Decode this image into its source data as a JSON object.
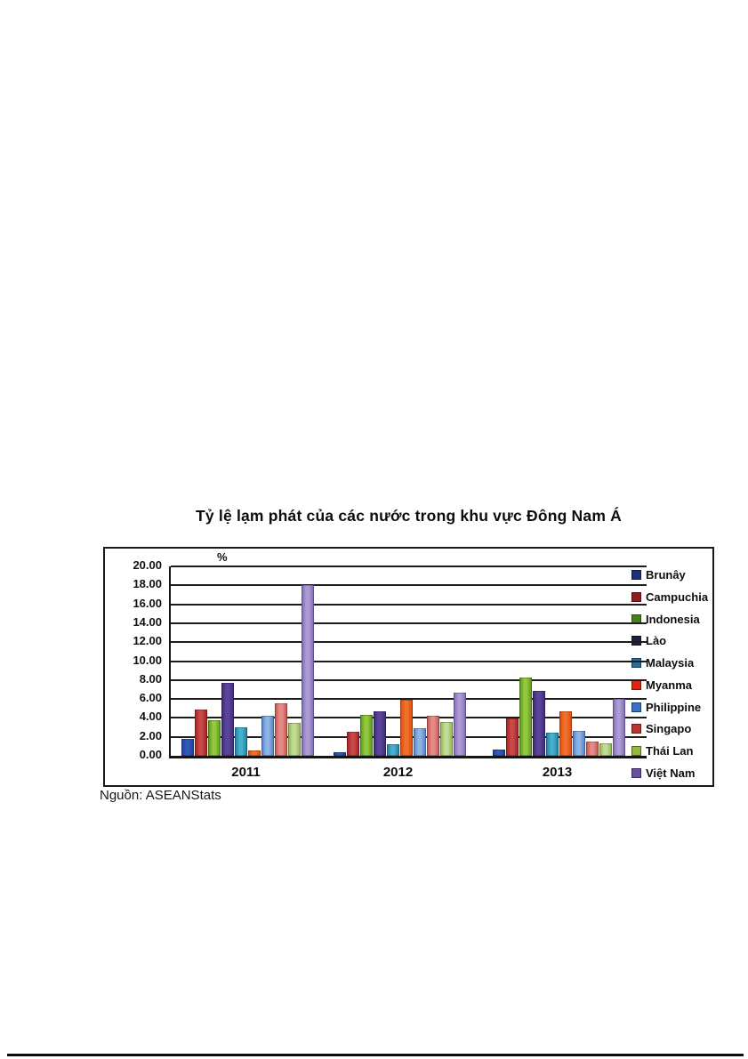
{
  "page": {
    "source_note": "Nguồn: ASEANStats"
  },
  "chart_data": {
    "type": "bar",
    "title": "Tỷ lệ lạm phát của các nước trong khu vực Đông Nam Á",
    "y_unit": "%",
    "xlabel": "",
    "ylabel": "%",
    "ylim": [
      0,
      20
    ],
    "y_step": 2,
    "y_tick_decimals": 2,
    "grid": true,
    "legend_position": "right",
    "gridline_color": "#1c1c1c",
    "categories": [
      "2011",
      "2012",
      "2013"
    ],
    "series": [
      {
        "name": "Brunây",
        "values": [
          1.8,
          0.4,
          0.7
        ],
        "legend_color": "#1c2f7d",
        "bar_edge": "#1e3e96",
        "bar_center": "#3558b8"
      },
      {
        "name": "Campuchia",
        "values": [
          4.9,
          2.5,
          3.9
        ],
        "legend_color": "#8e1d1e",
        "bar_edge": "#9e1e22",
        "bar_center": "#c94948"
      },
      {
        "name": "Indonesia",
        "values": [
          3.8,
          4.3,
          8.3
        ],
        "legend_color": "#44831f",
        "bar_edge": "#55941e",
        "bar_center": "#94c83d"
      },
      {
        "name": "Lào",
        "values": [
          7.7,
          4.7,
          6.9
        ],
        "legend_color": "#1b2240",
        "bar_edge": "#3b2a72",
        "bar_center": "#5c449c"
      },
      {
        "name": "Malaysia",
        "values": [
          3.0,
          1.2,
          2.4
        ],
        "legend_color": "#27709b",
        "bar_edge": "#1f7c9e",
        "bar_center": "#44b0cc"
      },
      {
        "name": "Myanma",
        "values": [
          0.6,
          5.9,
          4.7
        ],
        "legend_color": "#dc2613",
        "bar_edge": "#d8470c",
        "bar_center": "#f0712b"
      },
      {
        "name": "Philippine",
        "values": [
          4.2,
          2.9,
          2.6
        ],
        "legend_color": "#3a6fc7",
        "bar_edge": "#4f7ec9",
        "bar_center": "#8fb4e4"
      },
      {
        "name": "Singapo",
        "values": [
          5.5,
          4.2,
          1.5
        ],
        "legend_color": "#bc3431",
        "bar_edge": "#c2504e",
        "bar_center": "#e68c88"
      },
      {
        "name": "Thái Lan",
        "values": [
          3.5,
          3.6,
          1.3
        ],
        "legend_color": "#92b83f",
        "bar_edge": "#90b352",
        "bar_center": "#c2dc96"
      },
      {
        "name": "Việt Nam",
        "values": [
          18.0,
          6.7,
          6.0
        ],
        "legend_color": "#6a4fa1",
        "bar_edge": "#7c68b0",
        "bar_center": "#ab9ad4"
      }
    ]
  }
}
